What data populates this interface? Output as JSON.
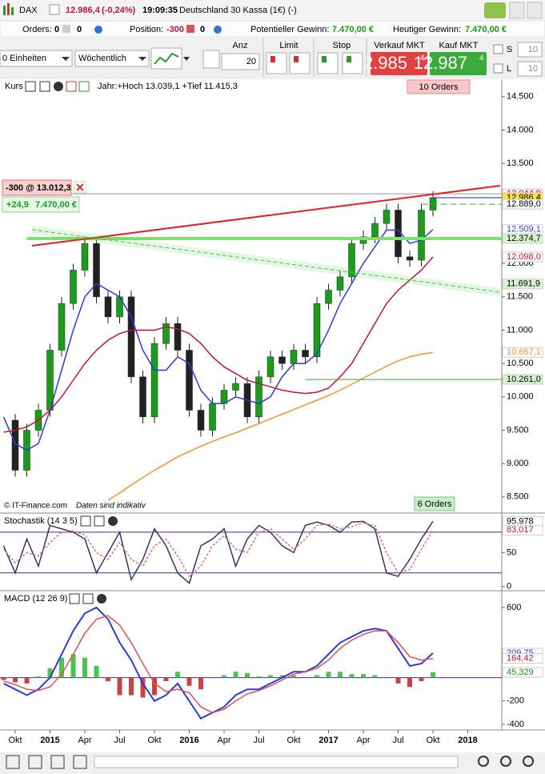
{
  "header": {
    "symbol": "DAX",
    "last": "12.986,4",
    "change": "(-0,24%)",
    "time": "19:09:35",
    "instrument": "Deutschland 30 Kassa (1€) (-)"
  },
  "status": {
    "orders_label": "Orders:",
    "orders": "0",
    "orders2": "0",
    "position_label": "Position:",
    "position": "-300",
    "position2": "0",
    "pot_label": "Potentieller Gewinn:",
    "pot": "7.470,00 €",
    "today_label": "Heutiger Gewinn:",
    "today": "7.470,00 €"
  },
  "toolbar": {
    "units": "0 Einheiten",
    "period": "Wöchentlich",
    "anz_label": "Anz",
    "anz": "20",
    "limit": "Limit",
    "stop": "Stop",
    "sell_label": "Verkauf MKT",
    "sell_main": "12.985",
    "sell_frac": "4",
    "buy_label": "Kauf MKT",
    "buy_main": "12.987",
    "buy_frac": "4",
    "s_label": "S",
    "s_value": "10",
    "l_label": "L",
    "l_value": "10"
  },
  "chart_data": [
    {
      "type": "candlestick",
      "title": "Kurs",
      "subtitle": "Jahr:+Hoch 13.039,1 +Tief 11.415,3",
      "annotations": {
        "orders_top": "10 Orders",
        "orders_bottom": "6 Orders",
        "copyright": "© IT-Finance.com",
        "note": "Daten sind indikativ",
        "position": "-300 @ 13.012,3",
        "pl_points": "+24,9",
        "pl_money": "7.470,00 €"
      },
      "categories": [
        null,
        "Okt",
        null,
        null,
        "2015",
        null,
        null,
        "Apr",
        null,
        null,
        "Jul",
        null,
        null,
        "Okt",
        null,
        null,
        "2016",
        null,
        null,
        "Apr",
        null,
        null,
        "Jul",
        null,
        null,
        "Okt",
        null,
        null,
        "2017",
        null,
        null,
        "Apr",
        null,
        null,
        "Jul",
        null,
        null,
        "Okt",
        null,
        null,
        "2018",
        null,
        null
      ],
      "ylim": [
        8270,
        14750
      ],
      "yticks": [
        {
          "value": 8500,
          "label": "8.500"
        },
        {
          "value": 9000,
          "label": "9.000"
        },
        {
          "value": 9500,
          "label": "9.500"
        },
        {
          "value": 10000,
          "label": "10.000"
        },
        {
          "value": 10500,
          "label": "10.500"
        },
        {
          "value": 11000,
          "label": "11.000"
        },
        {
          "value": 11500,
          "label": "11.500"
        },
        {
          "value": 12000,
          "label": "12.000"
        },
        {
          "value": 12500,
          "label": "12.500"
        },
        {
          "value": 13000,
          "label": "13.000"
        },
        {
          "value": 13500,
          "label": "13.500"
        },
        {
          "value": 14000,
          "label": "14.000"
        },
        {
          "value": 14500,
          "label": "14.500"
        }
      ],
      "series": [
        {
          "style": "candles",
          "color": "#1a9e1a",
          "down_color": "#222222",
          "values": [
            9650,
            8900,
            9500,
            9800,
            10700,
            11400,
            11900,
            12300,
            11500,
            11200,
            11500,
            10300,
            9700,
            10800,
            11100,
            10700,
            9800,
            9500,
            9900,
            10100,
            10200,
            9700,
            10300,
            10600,
            10500,
            10700,
            10600,
            11400,
            11600,
            11800,
            12300,
            12400,
            12600,
            12800,
            12100,
            12050,
            12800,
            12986,
            null,
            null,
            null,
            null,
            null
          ]
        },
        {
          "style": "line",
          "color": "#2b3bd6",
          "values": [
            9700,
            9300,
            9200,
            9300,
            9800,
            10400,
            11000,
            11500,
            11700,
            11600,
            11500,
            11200,
            10700,
            10400,
            10400,
            10600,
            10500,
            10100,
            9900,
            9900,
            10000,
            9950,
            9900,
            10000,
            10300,
            10500,
            10500,
            10650,
            11000,
            11400,
            11700,
            12000,
            12250,
            12500,
            12500,
            12300,
            12350,
            12509,
            null,
            null,
            null,
            null,
            null
          ]
        },
        {
          "style": "line",
          "color": "#c0143c",
          "values": [
            9470,
            9500,
            9550,
            9650,
            9800,
            10000,
            10250,
            10500,
            10700,
            10850,
            10950,
            11000,
            11000,
            11000,
            11050,
            11020,
            10950,
            10800,
            10600,
            10450,
            10350,
            10250,
            10200,
            10150,
            10100,
            10070,
            10050,
            10070,
            10130,
            10300,
            10500,
            10800,
            11100,
            11400,
            11600,
            11750,
            11900,
            12098,
            null,
            null,
            null,
            null,
            null
          ]
        },
        {
          "style": "line",
          "color": "#f5902a",
          "values": [
            null,
            null,
            null,
            null,
            null,
            null,
            null,
            null,
            null,
            8450,
            8560,
            8680,
            8790,
            8900,
            9000,
            9100,
            9180,
            9260,
            9330,
            9400,
            9460,
            9530,
            9600,
            9670,
            9740,
            9810,
            9880,
            9950,
            10020,
            10100,
            10190,
            10280,
            10370,
            10460,
            10540,
            10600,
            10640,
            10667,
            null,
            null,
            null,
            null,
            null
          ]
        }
      ],
      "levels": [
        {
          "value": 13044.9,
          "label": "13.044,9",
          "color": "#c0143c",
          "bg": "#f0f0f0",
          "line": "#999999",
          "from": 0
        },
        {
          "value": 12986.4,
          "label": "12.986,4",
          "color": "#000000",
          "bg": "#ffe040",
          "line": "#1020c0",
          "from": 37
        },
        {
          "value": 12889.0,
          "label": "12.889,0",
          "color": "#000000",
          "bg": "#ffffff",
          "line": "#3aa83a",
          "dashed": true,
          "from": 36
        },
        {
          "value": 12509.1,
          "label": "12.509,1",
          "color": "#2b3bd6",
          "bg": "#ffffff"
        },
        {
          "value": 12374.7,
          "label": "12.374,7",
          "color": "#000000",
          "bg": "#d8f5d0",
          "line": "#7ee070",
          "width": 4,
          "from": 2
        },
        {
          "value": 12098.0,
          "label": "12.098,0",
          "color": "#c0143c",
          "bg": "#ffffff"
        },
        {
          "value": 11691.9,
          "label": "11.691,9",
          "color": "#000000",
          "bg": "#d8f5d0"
        },
        {
          "value": 10667.1,
          "label": "10.667,1",
          "color": "#f5902a",
          "bg": "#ffffff"
        },
        {
          "value": 10261.0,
          "label": "10.261,0",
          "color": "#000000",
          "bg": "#d8f5d0",
          "line": "#3aa83a",
          "from": 26
        }
      ]
    },
    {
      "type": "line",
      "title": "Stochastik (14 3 5)",
      "ylim": [
        -5,
        107
      ],
      "yticks": [
        0,
        50
      ],
      "bands": [
        20,
        80
      ],
      "series": [
        {
          "style": "line",
          "color": "#333366",
          "values": [
            60,
            20,
            70,
            30,
            90,
            85,
            80,
            70,
            20,
            50,
            80,
            10,
            40,
            85,
            60,
            20,
            5,
            60,
            70,
            85,
            30,
            70,
            90,
            80,
            60,
            50,
            90,
            95,
            90,
            80,
            95,
            96,
            85,
            20,
            15,
            40,
            70,
            96,
            null,
            null,
            null,
            null,
            null
          ]
        },
        {
          "style": "line",
          "color": "#e07070",
          "dashed": true,
          "values": [
            55,
            35,
            50,
            45,
            65,
            80,
            82,
            76,
            50,
            40,
            65,
            40,
            30,
            60,
            70,
            45,
            15,
            30,
            60,
            75,
            55,
            50,
            80,
            85,
            70,
            55,
            70,
            90,
            92,
            85,
            88,
            94,
            90,
            50,
            20,
            25,
            55,
            83,
            null,
            null,
            null,
            null,
            null
          ]
        }
      ],
      "levels": [
        {
          "value": 95.978,
          "label": "95.978",
          "color": "#000000",
          "bg": "#ffffff"
        },
        {
          "value": 83.017,
          "label": "83,017",
          "color": "#c0143c",
          "bg": "#ffffff"
        }
      ]
    },
    {
      "type": "macd",
      "title": "MACD (12 26 9)",
      "ylim": [
        -448,
        730
      ],
      "yticks": [
        -400,
        -200,
        600
      ],
      "zero": 0,
      "series": [
        {
          "style": "bars",
          "color": "#4cc44c",
          "down_color": "#d04040",
          "values": [
            -20,
            -40,
            -50,
            10,
            80,
            170,
            200,
            170,
            100,
            -30,
            -150,
            -150,
            -170,
            -150,
            -30,
            50,
            -70,
            -100,
            0,
            20,
            50,
            40,
            10,
            20,
            20,
            20,
            0,
            20,
            50,
            50,
            30,
            30,
            20,
            0,
            -50,
            -80,
            -30,
            46,
            null,
            null,
            null,
            null,
            null
          ]
        },
        {
          "style": "line",
          "color": "#2b3bd6",
          "width": 2,
          "values": [
            -50,
            -100,
            -150,
            -100,
            0,
            200,
            400,
            550,
            600,
            500,
            300,
            150,
            -50,
            -200,
            -150,
            -50,
            -200,
            -350,
            -300,
            -250,
            -150,
            -100,
            -100,
            -50,
            0,
            50,
            50,
            100,
            200,
            300,
            350,
            400,
            420,
            400,
            250,
            100,
            120,
            210,
            null,
            null,
            null,
            null,
            null
          ]
        },
        {
          "style": "line",
          "color": "#e05050",
          "values": [
            -30,
            -60,
            -100,
            -110,
            -80,
            30,
            200,
            380,
            500,
            530,
            450,
            300,
            120,
            -50,
            -120,
            -100,
            -130,
            -250,
            -300,
            -270,
            -200,
            -140,
            -110,
            -70,
            -20,
            30,
            50,
            80,
            150,
            250,
            320,
            370,
            400,
            400,
            300,
            180,
            150,
            164,
            null,
            null,
            null,
            null,
            null
          ]
        }
      ],
      "levels": [
        {
          "value": 209.75,
          "label": "209,75",
          "color": "#2b3bd6",
          "bg": "#ffffff"
        },
        {
          "value": 164.42,
          "label": "164,42",
          "color": "#c0143c",
          "bg": "#ffffff"
        },
        {
          "value": 45.329,
          "label": "45,329",
          "color": "#1a8a1a",
          "bg": "#ffffff"
        }
      ]
    }
  ]
}
